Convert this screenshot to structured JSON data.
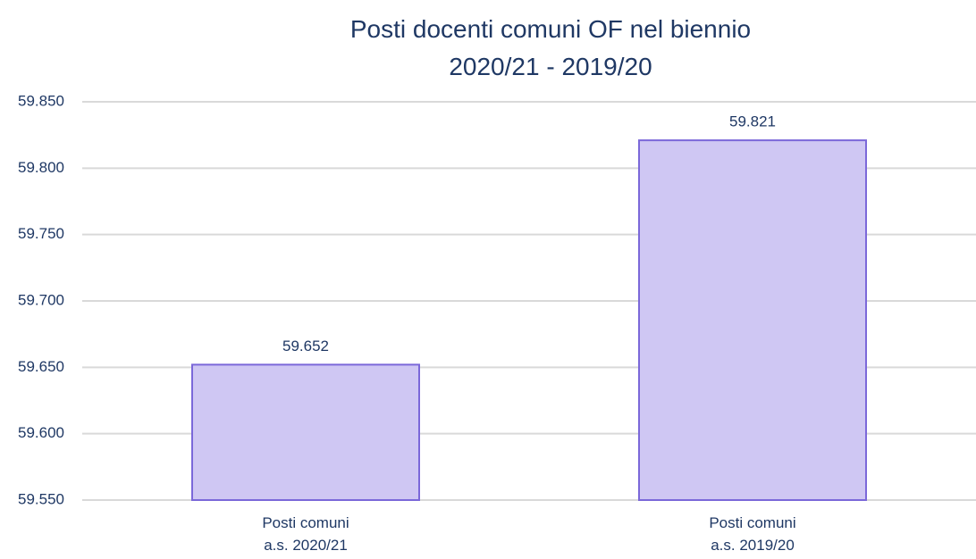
{
  "chart_data": {
    "type": "bar",
    "title": "Posti docenti comuni OF nel biennio\n2020/21 - 2019/20",
    "categories": [
      "Posti comuni\na.s. 2020/21",
      "Posti comuni\na.s. 2019/20"
    ],
    "values": [
      59652,
      59821
    ],
    "value_labels": [
      "59.652",
      "59.821"
    ],
    "color": "#cfc7f3",
    "edge_color": "#7b68d9",
    "ylim": [
      59550,
      59850
    ],
    "yticks": [
      {
        "value": 59550,
        "label": "59.550"
      },
      {
        "value": 59600,
        "label": "59.600"
      },
      {
        "value": 59650,
        "label": "59.650"
      },
      {
        "value": 59700,
        "label": "59.700"
      },
      {
        "value": 59750,
        "label": "59.750"
      },
      {
        "value": 59800,
        "label": "59.800"
      },
      {
        "value": 59850,
        "label": "59.850"
      }
    ],
    "grid": true
  }
}
